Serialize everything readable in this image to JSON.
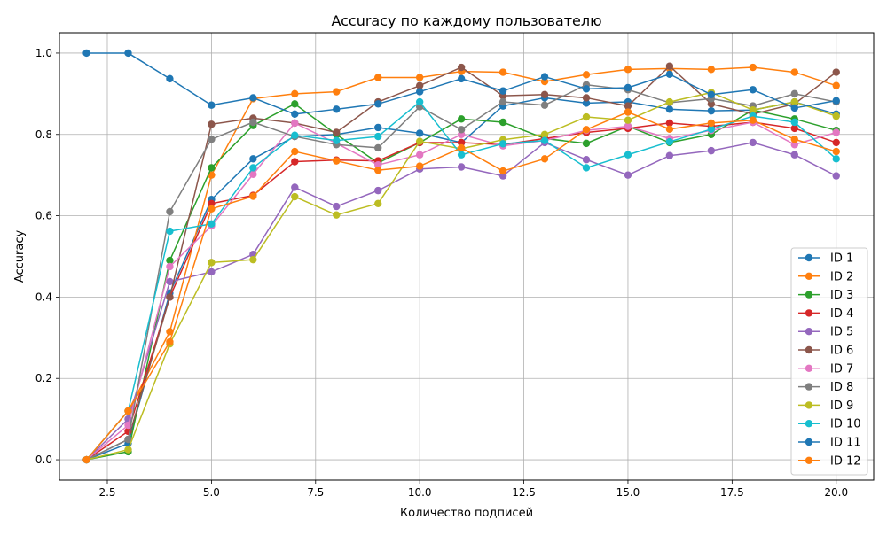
{
  "chart_data": {
    "type": "line",
    "title": "Accuracy по каждому пользователю",
    "xlabel": "Количество подписей",
    "ylabel": "Accuracy",
    "xlim": [
      1.35,
      20.9
    ],
    "ylim": [
      -0.05,
      1.05
    ],
    "xticks": [
      2.5,
      5.0,
      7.5,
      10.0,
      12.5,
      15.0,
      17.5,
      20.0
    ],
    "xtick_labels": [
      "2.5",
      "5.0",
      "7.5",
      "10.0",
      "12.5",
      "15.0",
      "17.5",
      "20.0"
    ],
    "yticks": [
      0.0,
      0.2,
      0.4,
      0.6,
      0.8,
      1.0
    ],
    "ytick_labels": [
      "0.0",
      "0.2",
      "0.4",
      "0.6",
      "0.8",
      "1.0"
    ],
    "grid": true,
    "legend_position": "lower-right",
    "x": [
      2,
      3,
      4,
      5,
      6,
      7,
      8,
      9,
      10,
      11,
      12,
      13,
      14,
      15,
      16,
      17,
      18,
      19,
      20
    ],
    "series": [
      {
        "name": "ID 1",
        "color": "#1f77b4",
        "values": [
          0.0,
          0.04,
          0.41,
          0.64,
          0.74,
          0.795,
          0.8,
          0.817,
          0.803,
          0.78,
          0.87,
          0.89,
          0.877,
          0.88,
          0.862,
          0.858,
          0.86,
          0.88,
          0.85
        ]
      },
      {
        "name": "ID 2",
        "color": "#ff7f0e",
        "values": [
          0.0,
          0.12,
          0.315,
          0.7,
          0.888,
          0.9,
          0.905,
          0.94,
          0.94,
          0.955,
          0.953,
          0.93,
          0.947,
          0.96,
          0.962,
          0.96,
          0.965,
          0.953,
          0.92
        ]
      },
      {
        "name": "ID 3",
        "color": "#2ca02c",
        "values": [
          0.0,
          0.02,
          0.49,
          0.718,
          0.822,
          0.875,
          0.8,
          0.73,
          0.78,
          0.838,
          0.83,
          0.79,
          0.778,
          0.82,
          0.78,
          0.8,
          0.86,
          0.838,
          0.81
        ]
      },
      {
        "name": "ID 4",
        "color": "#d62728",
        "values": [
          0.0,
          0.07,
          0.4,
          0.63,
          0.65,
          0.733,
          0.737,
          0.735,
          0.78,
          0.78,
          0.775,
          0.79,
          0.805,
          0.815,
          0.828,
          0.82,
          0.83,
          0.815,
          0.78
        ]
      },
      {
        "name": "ID 5",
        "color": "#9467bd",
        "values": [
          0.0,
          0.1,
          0.438,
          0.462,
          0.505,
          0.67,
          0.623,
          0.662,
          0.715,
          0.72,
          0.698,
          0.78,
          0.738,
          0.7,
          0.748,
          0.76,
          0.78,
          0.75,
          0.698
        ]
      },
      {
        "name": "ID 6",
        "color": "#8c564b",
        "values": [
          0.0,
          0.05,
          0.4,
          0.825,
          0.84,
          0.828,
          0.805,
          0.88,
          0.92,
          0.965,
          0.895,
          0.898,
          0.89,
          0.87,
          0.968,
          0.875,
          0.85,
          0.875,
          0.953
        ]
      },
      {
        "name": "ID 7",
        "color": "#e377c2",
        "values": [
          0.0,
          0.085,
          0.475,
          0.575,
          0.702,
          0.828,
          0.778,
          0.725,
          0.75,
          0.8,
          0.772,
          0.785,
          0.81,
          0.82,
          0.79,
          0.81,
          0.83,
          0.775,
          0.805
        ]
      },
      {
        "name": "ID 8",
        "color": "#7f7f7f",
        "values": [
          0.0,
          0.05,
          0.61,
          0.788,
          0.83,
          0.795,
          0.775,
          0.767,
          0.868,
          0.812,
          0.88,
          0.872,
          0.922,
          0.91,
          0.878,
          0.888,
          0.87,
          0.9,
          0.88
        ]
      },
      {
        "name": "ID 9",
        "color": "#bcbd22",
        "values": [
          0.0,
          0.025,
          0.285,
          0.485,
          0.492,
          0.647,
          0.602,
          0.63,
          0.783,
          0.765,
          0.787,
          0.8,
          0.843,
          0.835,
          0.88,
          0.903,
          0.86,
          0.88,
          0.845
        ]
      },
      {
        "name": "ID 10",
        "color": "#17becf",
        "values": [
          0.0,
          0.12,
          0.562,
          0.58,
          0.718,
          0.798,
          0.785,
          0.795,
          0.88,
          0.75,
          0.777,
          0.785,
          0.718,
          0.75,
          0.782,
          0.813,
          0.845,
          0.83,
          0.74
        ]
      },
      {
        "name": "ID 11",
        "color": "#1f77b4",
        "values": [
          1.0,
          1.0,
          0.937,
          0.872,
          0.89,
          0.85,
          0.862,
          0.875,
          0.905,
          0.937,
          0.907,
          0.942,
          0.912,
          0.915,
          0.948,
          0.898,
          0.91,
          0.865,
          0.883
        ]
      },
      {
        "name": "ID 12",
        "color": "#ff7f0e",
        "values": [
          0.0,
          0.12,
          0.29,
          0.617,
          0.648,
          0.758,
          0.735,
          0.712,
          0.722,
          0.767,
          0.71,
          0.74,
          0.812,
          0.855,
          0.813,
          0.828,
          0.835,
          0.788,
          0.758
        ]
      }
    ]
  }
}
